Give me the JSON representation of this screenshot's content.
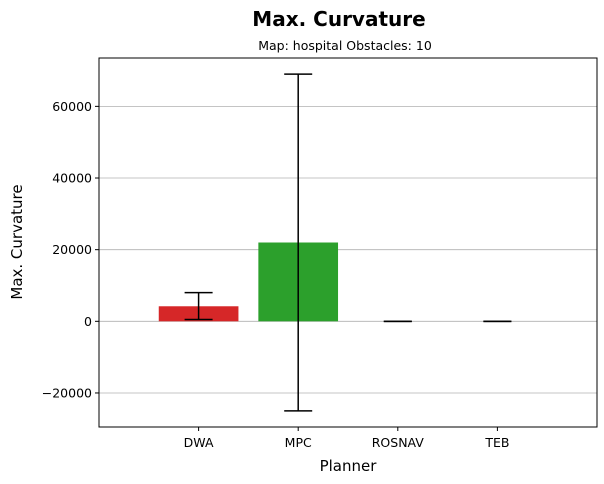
{
  "chart_data": {
    "type": "bar",
    "title": "Max. Curvature",
    "subtitle": "Map: hospital Obstacles: 10",
    "xlabel": "Planner",
    "ylabel": "Max. Curvature",
    "categories": [
      "DWA",
      "MPC",
      "ROSNAV",
      "TEB"
    ],
    "values": [
      4200,
      22000,
      0,
      0
    ],
    "error_low": [
      500,
      -25000,
      0,
      0
    ],
    "error_high": [
      8000,
      69000,
      0,
      0
    ],
    "colors": [
      "#d62728",
      "#2ca02c",
      "#9467bd",
      "#8c564b"
    ],
    "ylim": [
      -29500,
      73500
    ],
    "yticks": [
      -20000,
      0,
      20000,
      40000,
      60000
    ],
    "ytick_labels": [
      "−20000",
      "0",
      "20000",
      "40000",
      "60000"
    ],
    "grid": "y"
  }
}
